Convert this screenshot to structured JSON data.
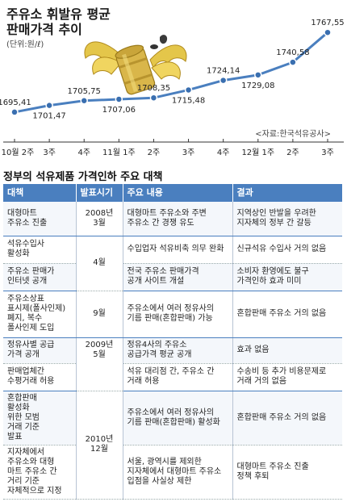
{
  "chart_data": {
    "type": "line",
    "title": "주유소 휘발유 평균\n판매가격 추이",
    "unit": "(단위:원/ℓ)",
    "source": "<자료:한국석유공사>",
    "x": [
      "10월 2주",
      "3주",
      "4주",
      "11월 1주",
      "2주",
      "3주",
      "4주",
      "12월 1주",
      "2주",
      "3주"
    ],
    "series": [
      {
        "values": [
          1695.41,
          1701.47,
          1705.75,
          1707.06,
          1708.35,
          1715.48,
          1724.14,
          1729.08,
          1740.58,
          1767.55
        ]
      }
    ],
    "value_labels": [
      "1695,41",
      "1701,47",
      "1705,75",
      "1707,06",
      "1708,35",
      "1715,48",
      "1724,14",
      "1729,08",
      "1740,58",
      "1767,55"
    ],
    "ylim": [
      1680,
      1775
    ],
    "colors": {
      "line": "#4a7fbf",
      "marker_fill": "#3a6fb0",
      "marker_stroke": "#ffffff"
    },
    "legend": "none",
    "grid": false
  },
  "table": {
    "title": "정부의 석유제품 가격인하 주요 대책",
    "headers": [
      "대책",
      "발표시기",
      "주요 내용",
      "결과"
    ],
    "rows": [
      {
        "measure": "대형마트\n주유소 진출",
        "period": "2008년\n3월",
        "content": "대형마트 주유소와 주변\n주유소 간 경쟁 유도",
        "result": "지역상인 반발을 우려한\n지자체의 정부 간 갈등"
      },
      {
        "measure": "석유수입사\n활성화",
        "period": "4월",
        "content": "수입업자 석유비축 의무 완화",
        "result": "신규석유 수입사 거의 없음"
      },
      {
        "measure": "주유소 판매가\n인터넷 공개",
        "period": "",
        "content": "전국 주유소 판매가격\n공개 사이트 개설",
        "result": "소비자 환영에도 불구\n가격인하 효과 미미"
      },
      {
        "measure": "주유소상표\n표시제(폴사인제)\n폐지, 복수\n폴사인제 도입",
        "period": "9월",
        "content": "주유소에서 여러 정유사의\n기름 판매(혼합판매) 가능",
        "result": "혼합판매 주유소 거의 없음"
      },
      {
        "measure": "정유사별 공급\n가격 공개",
        "period": "2009년\n5월",
        "content": "정유4사의 주유소\n공급가격 평균 공개",
        "result": "효과 없음"
      },
      {
        "measure": "판매업체간\n수평거래 허용",
        "period": "",
        "content": "석유 대리점 간, 주유소 간\n거래 허용",
        "result": "수송비 등 추가 비용문제로\n거래 거의 없음"
      },
      {
        "measure": "혼합판매\n활성화\n위한 모범\n거래 기준\n발표",
        "period": "2010년\n12월",
        "content": "주유소에서 여러 정유사의\n기름 판매(혼합판매) 활성화",
        "result": "혼합판매 주유소 거의 없음"
      },
      {
        "measure": "지자체에서\n주유소와 대형\n마트 주유소 간\n거리 기준\n자체적으로 지정",
        "period": "",
        "content": "서울, 광역시를 제외한\n지자체에서 대형마트 주유소\n입점을 사실상 제한",
        "result": "대형마트 주유소 진출\n정책 후퇴"
      }
    ]
  }
}
